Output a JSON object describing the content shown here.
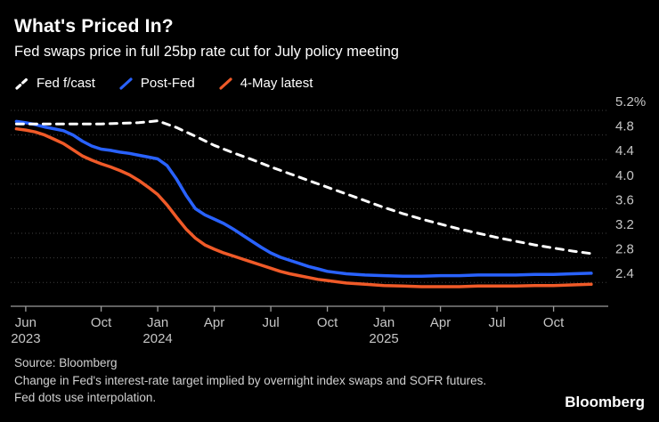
{
  "colors": {
    "background": "#000000",
    "title": "#ffffff",
    "grid": "#3f3f3f",
    "axis": "#9b9b9b",
    "axis_label": "#c6c6c6",
    "footer_text": "#d0d0d0",
    "fed_fcast": "#ffffff",
    "post_fed": "#2962ff",
    "may_latest": "#f05a28"
  },
  "header": {
    "title": "What's Priced In?",
    "subtitle": "Fed swaps price in full 25bp rate cut for July policy meeting"
  },
  "legend": [
    {
      "label": "Fed f/cast",
      "color": "#ffffff",
      "style": "dashed"
    },
    {
      "label": "Post-Fed",
      "color": "#2962ff",
      "style": "solid"
    },
    {
      "label": "4-May latest",
      "color": "#f05a28",
      "style": "solid"
    }
  ],
  "chart_data": {
    "type": "line",
    "title": "What's Priced In?",
    "subtitle": "Fed swaps price in full 25bp rate cut for July policy meeting",
    "x_unit": "months_since_jun_2023",
    "xlim": [
      -0.8,
      30.9
    ],
    "ylim": [
      2.05,
      5.35
    ],
    "grid": "dotted-horizontal",
    "legend_position": "top-left",
    "y_ticks": [
      5.2,
      4.8,
      4.4,
      4.0,
      3.6,
      3.2,
      2.8,
      2.4
    ],
    "y_tick_labels": [
      "5.2%",
      "4.8",
      "4.4",
      "4.0",
      "3.6",
      "3.2",
      "2.8",
      "2.4"
    ],
    "x_ticks": [
      {
        "x": 0,
        "label": "Jun",
        "sub": "2023"
      },
      {
        "x": 4,
        "label": "Oct"
      },
      {
        "x": 7,
        "label": "Jan",
        "sub": "2024"
      },
      {
        "x": 10,
        "label": "Apr"
      },
      {
        "x": 13,
        "label": "Jul"
      },
      {
        "x": 16,
        "label": "Oct"
      },
      {
        "x": 19,
        "label": "Jan",
        "sub": "2025"
      },
      {
        "x": 22,
        "label": "Apr"
      },
      {
        "x": 25,
        "label": "Jul"
      },
      {
        "x": 28,
        "label": "Oct"
      }
    ],
    "series": [
      {
        "name": "Fed f/cast",
        "color": "#ffffff",
        "dash": true,
        "width": 3,
        "points": [
          [
            -0.5,
            4.98
          ],
          [
            0,
            4.98
          ],
          [
            2,
            4.98
          ],
          [
            4,
            4.98
          ],
          [
            6,
            5.0
          ],
          [
            7,
            5.03
          ],
          [
            8,
            4.92
          ],
          [
            9,
            4.78
          ],
          [
            10,
            4.63
          ],
          [
            11,
            4.51
          ],
          [
            12,
            4.4
          ],
          [
            13,
            4.28
          ],
          [
            14,
            4.17
          ],
          [
            15,
            4.06
          ],
          [
            16,
            3.95
          ],
          [
            17,
            3.84
          ],
          [
            18,
            3.73
          ],
          [
            19,
            3.62
          ],
          [
            20,
            3.52
          ],
          [
            21,
            3.43
          ],
          [
            22,
            3.35
          ],
          [
            23,
            3.27
          ],
          [
            24,
            3.2
          ],
          [
            25,
            3.13
          ],
          [
            26,
            3.07
          ],
          [
            27,
            3.01
          ],
          [
            28,
            2.96
          ],
          [
            29,
            2.91
          ],
          [
            30,
            2.87
          ]
        ]
      },
      {
        "name": "Post-Fed",
        "color": "#2962ff",
        "dash": false,
        "width": 3.5,
        "points": [
          [
            -0.5,
            5.02
          ],
          [
            0,
            5.0
          ],
          [
            0.5,
            4.97
          ],
          [
            1,
            4.93
          ],
          [
            1.5,
            4.9
          ],
          [
            2,
            4.87
          ],
          [
            2.5,
            4.8
          ],
          [
            3,
            4.7
          ],
          [
            3.5,
            4.62
          ],
          [
            4,
            4.57
          ],
          [
            4.5,
            4.55
          ],
          [
            5,
            4.52
          ],
          [
            5.5,
            4.5
          ],
          [
            6,
            4.47
          ],
          [
            6.5,
            4.44
          ],
          [
            7,
            4.41
          ],
          [
            7.5,
            4.3
          ],
          [
            8,
            4.08
          ],
          [
            8.5,
            3.82
          ],
          [
            9,
            3.6
          ],
          [
            9.5,
            3.5
          ],
          [
            10,
            3.43
          ],
          [
            10.5,
            3.36
          ],
          [
            11,
            3.27
          ],
          [
            11.5,
            3.17
          ],
          [
            12,
            3.07
          ],
          [
            12.5,
            2.97
          ],
          [
            13,
            2.88
          ],
          [
            13.5,
            2.81
          ],
          [
            14,
            2.76
          ],
          [
            14.5,
            2.71
          ],
          [
            15,
            2.66
          ],
          [
            15.5,
            2.62
          ],
          [
            16,
            2.58
          ],
          [
            16.5,
            2.56
          ],
          [
            17,
            2.54
          ],
          [
            18,
            2.52
          ],
          [
            19,
            2.51
          ],
          [
            20,
            2.5
          ],
          [
            21,
            2.5
          ],
          [
            22,
            2.51
          ],
          [
            23,
            2.51
          ],
          [
            24,
            2.52
          ],
          [
            25,
            2.52
          ],
          [
            26,
            2.52
          ],
          [
            27,
            2.53
          ],
          [
            28,
            2.53
          ],
          [
            29,
            2.54
          ],
          [
            30,
            2.55
          ]
        ]
      },
      {
        "name": "4-May latest",
        "color": "#f05a28",
        "dash": false,
        "width": 3.5,
        "points": [
          [
            -0.5,
            4.9
          ],
          [
            0,
            4.88
          ],
          [
            0.5,
            4.85
          ],
          [
            1,
            4.8
          ],
          [
            1.5,
            4.73
          ],
          [
            2,
            4.66
          ],
          [
            2.5,
            4.56
          ],
          [
            3,
            4.46
          ],
          [
            3.5,
            4.39
          ],
          [
            4,
            4.33
          ],
          [
            4.5,
            4.28
          ],
          [
            5,
            4.22
          ],
          [
            5.5,
            4.15
          ],
          [
            6,
            4.06
          ],
          [
            6.5,
            3.95
          ],
          [
            7,
            3.83
          ],
          [
            7.5,
            3.66
          ],
          [
            8,
            3.46
          ],
          [
            8.5,
            3.27
          ],
          [
            9,
            3.12
          ],
          [
            9.5,
            3.01
          ],
          [
            10,
            2.94
          ],
          [
            10.5,
            2.88
          ],
          [
            11,
            2.83
          ],
          [
            11.5,
            2.78
          ],
          [
            12,
            2.73
          ],
          [
            12.5,
            2.68
          ],
          [
            13,
            2.63
          ],
          [
            13.5,
            2.58
          ],
          [
            14,
            2.54
          ],
          [
            14.5,
            2.51
          ],
          [
            15,
            2.48
          ],
          [
            15.5,
            2.45
          ],
          [
            16,
            2.43
          ],
          [
            16.5,
            2.41
          ],
          [
            17,
            2.39
          ],
          [
            18,
            2.37
          ],
          [
            19,
            2.35
          ],
          [
            20,
            2.34
          ],
          [
            21,
            2.33
          ],
          [
            22,
            2.33
          ],
          [
            23,
            2.33
          ],
          [
            24,
            2.34
          ],
          [
            25,
            2.34
          ],
          [
            26,
            2.34
          ],
          [
            27,
            2.35
          ],
          [
            28,
            2.35
          ],
          [
            29,
            2.36
          ],
          [
            30,
            2.37
          ]
        ]
      }
    ]
  },
  "footer": {
    "source": "Source: Bloomberg",
    "note": "Change in Fed's interest-rate target implied by overnight index swaps and SOFR futures. Fed dots use interpolation.",
    "brand": "Bloomberg"
  }
}
